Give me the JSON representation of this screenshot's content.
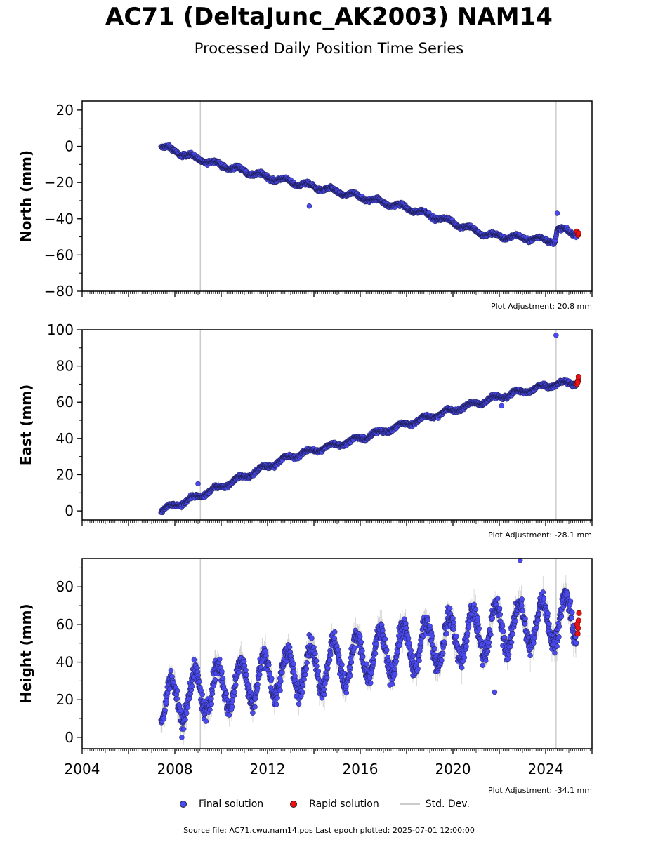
{
  "title": "AC71 (DeltaJunc_AK2003) NAM14",
  "subtitle": "Processed Daily Position Time Series",
  "legend": {
    "final": "Final solution",
    "rapid": "Rapid solution",
    "std": "Std. Dev."
  },
  "footer": "Source file: AC71.cwu.nam14.pos  Last epoch plotted: 2025-07-01 12:00:00",
  "colors": {
    "final": "#4a4af0",
    "rapid": "#ee1111",
    "std": "#cccccc",
    "event_line": "#cccccc"
  },
  "chart_data": [
    {
      "type": "scatter",
      "panel": "north",
      "ylabel": "North (mm)",
      "ylim": [
        -80,
        25
      ],
      "xlim": [
        2004,
        2026
      ],
      "yticks": [
        20,
        0,
        -20,
        -40,
        -60,
        -80
      ],
      "adjustment": "Plot Adjustment: 20.8 mm",
      "events": [
        2009.1,
        2024.45
      ],
      "final_trend": [
        [
          2007.4,
          0
        ],
        [
          2009.0,
          -7
        ],
        [
          2012.0,
          -17
        ],
        [
          2015.0,
          -25
        ],
        [
          2018.0,
          -34
        ],
        [
          2020.0,
          -42
        ],
        [
          2021.5,
          -49
        ],
        [
          2024.4,
          -52
        ],
        [
          2024.5,
          -46
        ],
        [
          2025.4,
          -48
        ]
      ],
      "final_outliers": [
        [
          2013.8,
          -33
        ],
        [
          2024.5,
          -37
        ]
      ],
      "rapid": [
        [
          2025.35,
          -47
        ],
        [
          2025.4,
          -49
        ],
        [
          2025.42,
          -48
        ]
      ]
    },
    {
      "type": "scatter",
      "panel": "east",
      "ylabel": "East (mm)",
      "ylim": [
        -5,
        100
      ],
      "xlim": [
        2004,
        2026
      ],
      "yticks": [
        100,
        80,
        60,
        40,
        20,
        0
      ],
      "adjustment": "Plot Adjustment: -28.1 mm",
      "events": [
        2009.1,
        2024.45
      ],
      "final_trend": [
        [
          2007.4,
          0
        ],
        [
          2009.0,
          8
        ],
        [
          2011.0,
          19
        ],
        [
          2013.0,
          30
        ],
        [
          2016.0,
          40
        ],
        [
          2019.0,
          52
        ],
        [
          2022.0,
          63
        ],
        [
          2024.4,
          70
        ],
        [
          2025.4,
          71
        ]
      ],
      "final_outliers": [
        [
          2009.0,
          15
        ],
        [
          2024.45,
          97
        ],
        [
          2022.1,
          58
        ]
      ],
      "rapid": [
        [
          2025.35,
          70
        ],
        [
          2025.4,
          72
        ],
        [
          2025.42,
          74
        ],
        [
          2025.38,
          71
        ]
      ]
    },
    {
      "type": "scatter",
      "panel": "height",
      "ylabel": "Height (mm)",
      "ylim": [
        -6,
        95
      ],
      "xlim": [
        2004,
        2026
      ],
      "yticks": [
        80,
        60,
        40,
        20,
        0
      ],
      "xticks": [
        2004,
        2008,
        2012,
        2016,
        2020,
        2024
      ],
      "adjustment": "Plot Adjustment: -34.1 mm",
      "events": [
        2009.1,
        2024.45
      ],
      "final_trend": [
        [
          2007.4,
          18
        ],
        [
          2010.0,
          27
        ],
        [
          2013.0,
          35
        ],
        [
          2016.0,
          42
        ],
        [
          2019.0,
          50
        ],
        [
          2022.0,
          58
        ],
        [
          2025.4,
          64
        ]
      ],
      "seasonal_amplitude": 12,
      "final_outliers": [
        [
          2022.9,
          94
        ],
        [
          2008.3,
          0
        ],
        [
          2021.8,
          24
        ]
      ],
      "rapid": [
        [
          2025.38,
          55
        ],
        [
          2025.4,
          58
        ],
        [
          2025.42,
          62
        ],
        [
          2025.36,
          60
        ],
        [
          2025.44,
          66
        ]
      ]
    }
  ]
}
